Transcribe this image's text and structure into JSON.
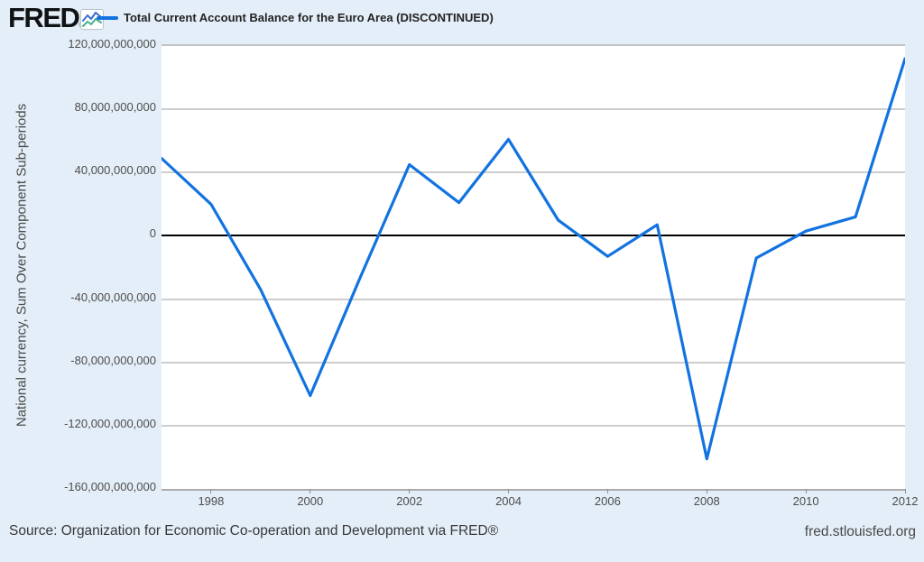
{
  "header": {
    "logo": "FRED",
    "registered_mark": "®",
    "legend_label": "Total Current Account Balance for the Euro Area (DISCONTINUED)"
  },
  "footer": {
    "source_text": "Source: Organization for Economic Co-operation and Development via FRED®",
    "site_text": "fred.stlouisfed.org"
  },
  "chart_data": {
    "type": "line",
    "title": "Total Current Account Balance for the Euro Area (DISCONTINUED)",
    "series_name": "Total Current Account Balance for the Euro Area (DISCONTINUED)",
    "xlabel": "",
    "ylabel": "National currency, Sum Over Component Sub-periods",
    "x": [
      1997,
      1998,
      1999,
      2000,
      2001,
      2002,
      2003,
      2004,
      2005,
      2006,
      2007,
      2008,
      2009,
      2010,
      2011,
      2012
    ],
    "values": [
      49000000000,
      20000000000,
      -34000000000,
      -101000000000,
      -27000000000,
      45000000000,
      21000000000,
      61000000000,
      10000000000,
      -13000000000,
      7000000000,
      -141000000000,
      -14000000000,
      3000000000,
      12000000000,
      112000000000
    ],
    "xlim": [
      1997,
      2012
    ],
    "ylim": [
      -160000000000,
      120000000000
    ],
    "grid": true,
    "zero_line": true,
    "legend_position": "top-left",
    "y_ticks": [
      {
        "value": 120000000000,
        "label": "120,000,000,000"
      },
      {
        "value": 80000000000,
        "label": "80,000,000,000"
      },
      {
        "value": 40000000000,
        "label": "40,000,000,000"
      },
      {
        "value": 0,
        "label": "0"
      },
      {
        "value": -40000000000,
        "label": "-40,000,000,000"
      },
      {
        "value": -80000000000,
        "label": "-80,000,000,000"
      },
      {
        "value": -120000000000,
        "label": "-120,000,000,000"
      },
      {
        "value": -160000000000,
        "label": "-160,000,000,000"
      }
    ],
    "x_ticks": [
      {
        "value": 1998,
        "label": "1998"
      },
      {
        "value": 2000,
        "label": "2000"
      },
      {
        "value": 2002,
        "label": "2002"
      },
      {
        "value": 2004,
        "label": "2004"
      },
      {
        "value": 2006,
        "label": "2006"
      },
      {
        "value": 2008,
        "label": "2008"
      },
      {
        "value": 2010,
        "label": "2010"
      },
      {
        "value": 2012,
        "label": "2012"
      }
    ],
    "colors": {
      "line": "#1273e0",
      "zero_line": "#000000",
      "gridline": "#cdcdcd",
      "page_background": "#e4eef8",
      "plot_background": "#ffffff",
      "logo_icon_blue": "#3b6fd4",
      "logo_icon_teal": "#45b08c"
    }
  }
}
